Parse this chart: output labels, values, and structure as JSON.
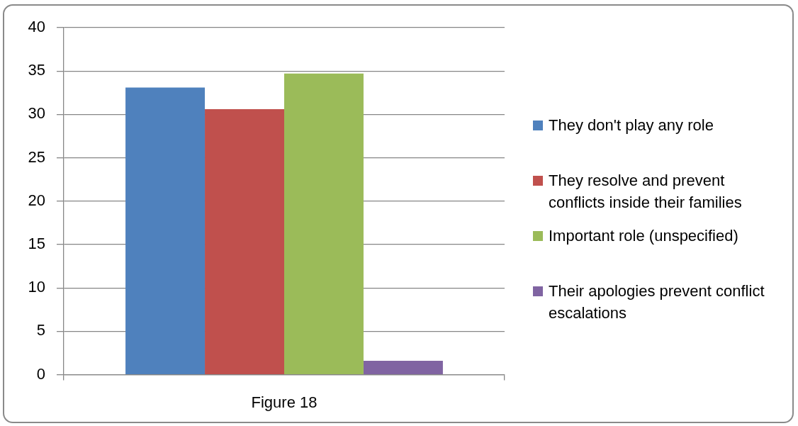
{
  "chart_data": {
    "type": "bar",
    "categories": [
      "Figure 18"
    ],
    "series": [
      {
        "name": "They don't play any role",
        "color": "#4f81bd",
        "values": [
          33.1
        ]
      },
      {
        "name": "They resolve and prevent conflicts inside their families",
        "color": "#c0504d",
        "values": [
          30.6
        ]
      },
      {
        "name": "Important role (unspecified)",
        "color": "#9bbb59",
        "values": [
          34.7
        ]
      },
      {
        "name": "Their apologies prevent conflict escalations",
        "color": "#8064a2",
        "values": [
          1.6
        ]
      }
    ],
    "ylim": [
      0,
      40
    ],
    "yticks": [
      0,
      5,
      10,
      15,
      20,
      25,
      30,
      35,
      40
    ],
    "grid": "y",
    "legend": "right"
  }
}
